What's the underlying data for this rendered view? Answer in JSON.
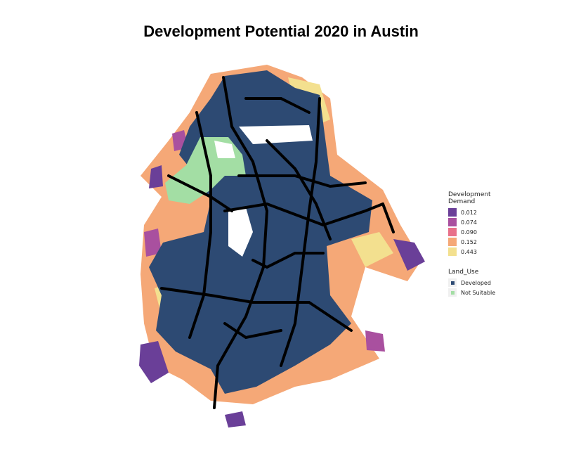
{
  "title": "Development Potential 2020 in Austin",
  "legend_demand": {
    "title": "Development Demand",
    "items": [
      {
        "label": "0.012",
        "color": "#6a3f98"
      },
      {
        "label": "0.074",
        "color": "#a9509f"
      },
      {
        "label": "0.090",
        "color": "#e8718a"
      },
      {
        "label": "0.152",
        "color": "#f5a877"
      },
      {
        "label": "0.443",
        "color": "#f3e08f"
      }
    ]
  },
  "legend_land_use": {
    "title": "Land_Use",
    "items": [
      {
        "label": "Developed",
        "color": "#2d4a73"
      },
      {
        "label": "Not Suitable",
        "color": "#a3dea4"
      }
    ]
  }
}
